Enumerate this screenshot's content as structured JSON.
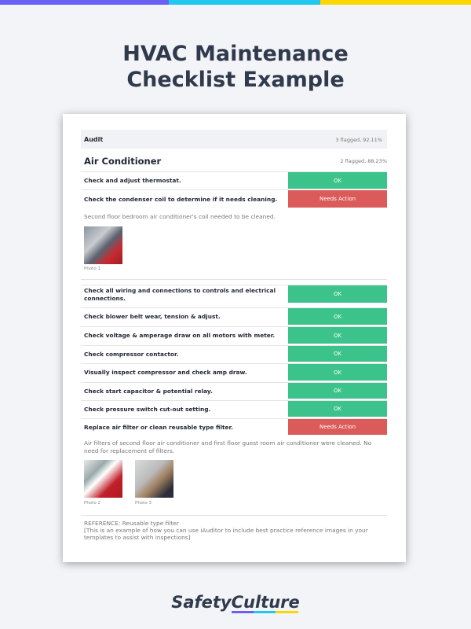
{
  "colors": {
    "purple": "#6c5ff5",
    "cyan": "#20c8f0",
    "yellow": "#ffd700",
    "ok": "#3cc28b",
    "action": "#db5b5b"
  },
  "title_line1": "HVAC Maintenance",
  "title_line2": "Checklist Example",
  "audit": {
    "label": "Audit",
    "meta": "3 flagged, 92.11%"
  },
  "section": {
    "title": "Air Conditioner",
    "meta": "2 flagged, 88.23%"
  },
  "items": [
    {
      "q": "Check and adjust thermostat.",
      "status": "OK"
    },
    {
      "q": "Check the condenser coil to determine if it needs cleaning.",
      "status": "Needs Action"
    },
    {
      "q": "Check all wiring and connections to controls and electrical connections.",
      "status": "OK"
    },
    {
      "q": "Check blower belt wear, tension & adjust.",
      "status": "OK"
    },
    {
      "q": "Check voltage & amperage draw on all motors with meter.",
      "status": "OK"
    },
    {
      "q": "Check compressor contactor.",
      "status": "OK"
    },
    {
      "q": "Visually inspect compressor and check amp draw.",
      "status": "OK"
    },
    {
      "q": "Check start capacitor & potential relay.",
      "status": "OK"
    },
    {
      "q": "Check pressure switch cut-out setting.",
      "status": "OK"
    },
    {
      "q": "Replace air filter or clean reusable type filter.",
      "status": "Needs Action"
    }
  ],
  "note1": "Second floor bedroom air conditioner's coil needed to be cleaned.",
  "photo1": "Photo 1",
  "note2": "Air filters of second floor air conditioner and first floor guest room air conditioner were cleaned. No need for replacement of filters.",
  "photo2": "Photo 2",
  "photo3": "Photo 3",
  "reference1": "REFERENCE: Reusable type filter",
  "reference2": "[This is an example of how you can use iAuditor to include best practice reference images in your templates to assist with inspections]",
  "logo": "SafetyCulture"
}
